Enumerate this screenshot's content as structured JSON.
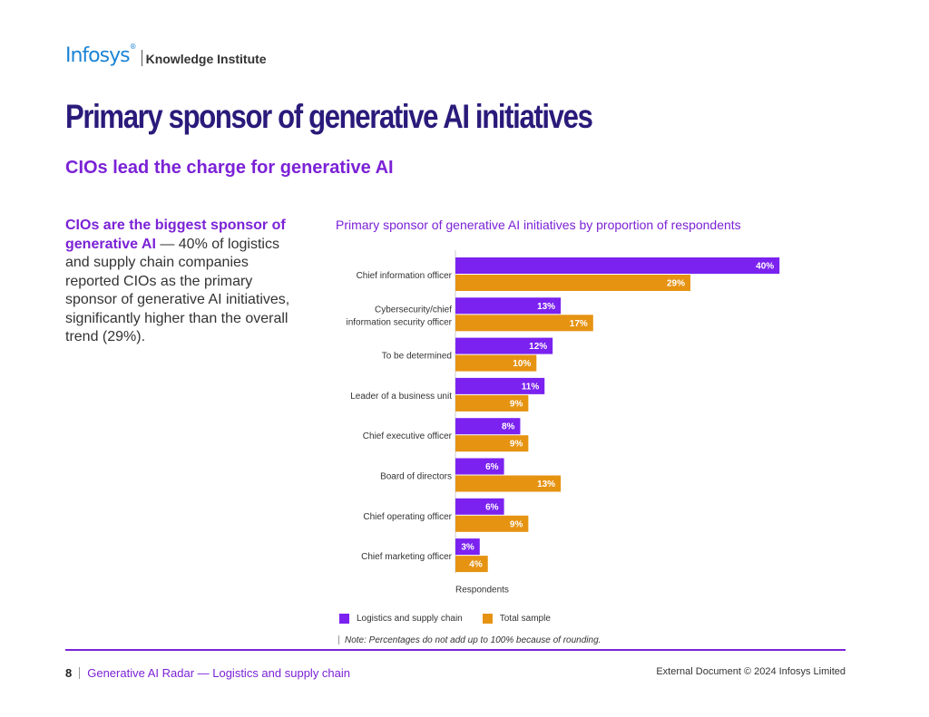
{
  "header": {
    "brand": "Infosys",
    "brand_mark": "®",
    "sub_brand": "Knowledge Institute"
  },
  "title": "Primary sponsor of generative AI initiatives",
  "subtitle": "CIOs lead the charge for generative AI",
  "body": {
    "lead": "CIOs are the biggest sponsor of generative AI",
    "text": " — 40% of logistics and supply chain companies reported CIOs as the primary sponsor of generative AI initiatives, significantly higher than the overall trend (29%)."
  },
  "chart_data": {
    "type": "bar",
    "orientation": "horizontal",
    "title": "Primary sponsor of generative AI initiatives by proportion of respondents",
    "xlabel": "Respondents",
    "ylabel": "",
    "xlim": [
      0,
      45
    ],
    "grid": false,
    "legend_position": "bottom",
    "categories": [
      [
        "Chief information officer"
      ],
      [
        "Cybersecurity/chief",
        "information security officer"
      ],
      [
        "To be determined"
      ],
      [
        "Leader of a business unit"
      ],
      [
        "Chief executive officer"
      ],
      [
        "Board of directors"
      ],
      [
        "Chief operating officer"
      ],
      [
        "Chief marketing officer"
      ]
    ],
    "series": [
      {
        "name": "Logistics and supply chain",
        "color": "#7b22f0",
        "values": [
          40,
          13,
          12,
          11,
          8,
          6,
          6,
          3
        ]
      },
      {
        "name": "Total sample",
        "color": "#e69312",
        "values": [
          29,
          17,
          10,
          9,
          9,
          13,
          9,
          4
        ]
      }
    ],
    "value_suffix": "%"
  },
  "note": "Note: Percentages do not add up to 100% because of rounding.",
  "footer": {
    "page_number": "8",
    "doc_title": "Generative AI Radar — Logistics and supply chain",
    "copyright": "External Document © 2024 Infosys Limited"
  }
}
